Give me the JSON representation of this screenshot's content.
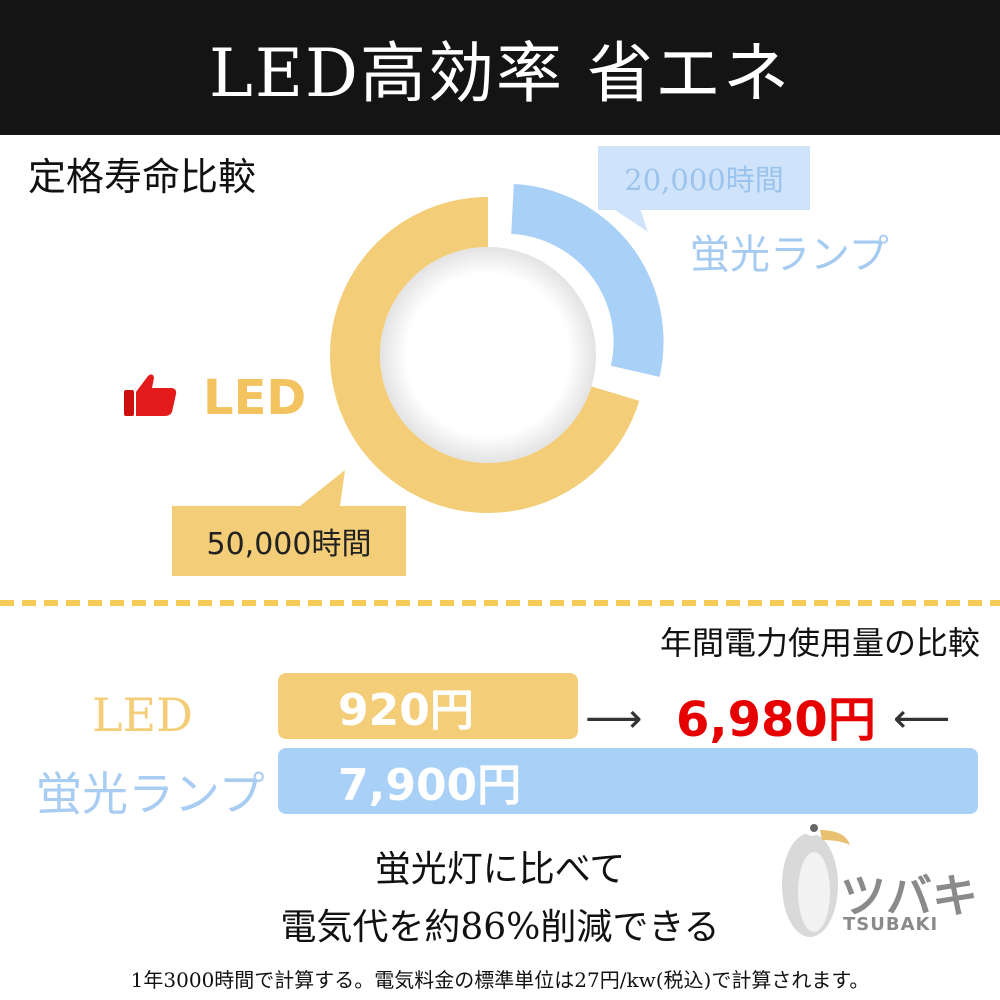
{
  "header": {
    "title": "LED高効率 省エネ"
  },
  "lifespan": {
    "section_title": "定格寿命比較",
    "fluorescent_label": "蛍光ランプ",
    "fluorescent_bubble": "20,000時間",
    "led_label": "LED",
    "led_bubble": "50,000時間"
  },
  "power": {
    "section_title": "年間電力使用量の比較",
    "led_label": "LED",
    "fluorescent_label": "蛍光ランプ",
    "led_value_text": "920円",
    "fluorescent_value_text": "7,900円",
    "savings_text": "6,980円"
  },
  "message": {
    "line1": "蛍光灯に比べて",
    "line2": "電気代を約86%削減できる"
  },
  "footnote": "1年3000時間で計算する。電気料金の標準単位は27円/kw(税込)で計算されます。",
  "logo": {
    "text_jp": "ツバキ",
    "text_en": "TSUBAKI"
  },
  "icons": {
    "thumb": "thumbs-up-icon"
  },
  "colors": {
    "led": "#f3cd78",
    "fluorescent": "#a9d0f6",
    "savings": "#e60000",
    "header_bg": "#141414"
  },
  "chart_data": [
    {
      "type": "pie",
      "title": "定格寿命比較",
      "categories": [
        "LED",
        "蛍光ランプ"
      ],
      "values": [
        50000,
        20000
      ],
      "units": "時間"
    },
    {
      "type": "bar",
      "title": "年間電力使用量の比較",
      "categories": [
        "LED",
        "蛍光ランプ"
      ],
      "values": [
        920,
        7900
      ],
      "units": "円"
    }
  ]
}
